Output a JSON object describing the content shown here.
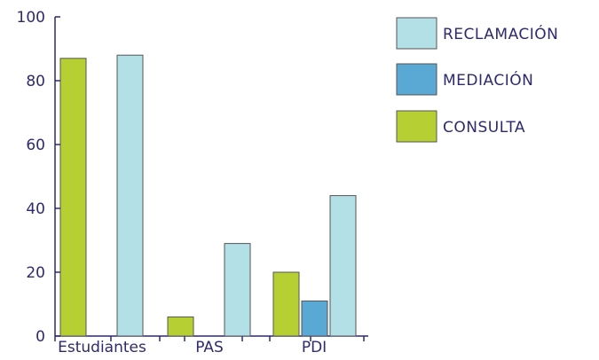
{
  "chart_data": {
    "type": "bar",
    "categories": [
      "Estudiantes",
      "PAS",
      "PDI"
    ],
    "series": [
      {
        "name": "CONSULTA",
        "color": "#b6d034",
        "values": [
          87,
          6,
          20
        ]
      },
      {
        "name": "MEDIACIÓN",
        "color": "#5aa8d4",
        "values": [
          0,
          0,
          11
        ]
      },
      {
        "name": "RECLAMACIÓN",
        "color": "#b2e0e6",
        "values": [
          88,
          29,
          44
        ]
      }
    ],
    "legend_order": [
      "RECLAMACIÓN",
      "MEDIACIÓN",
      "CONSULTA"
    ],
    "legend_position": "top-right",
    "ylim": [
      0,
      100
    ],
    "yticks": [
      "0",
      "20",
      "40",
      "60",
      "80",
      "100"
    ],
    "grid": false,
    "title": "",
    "xlabel": "",
    "ylabel": ""
  }
}
